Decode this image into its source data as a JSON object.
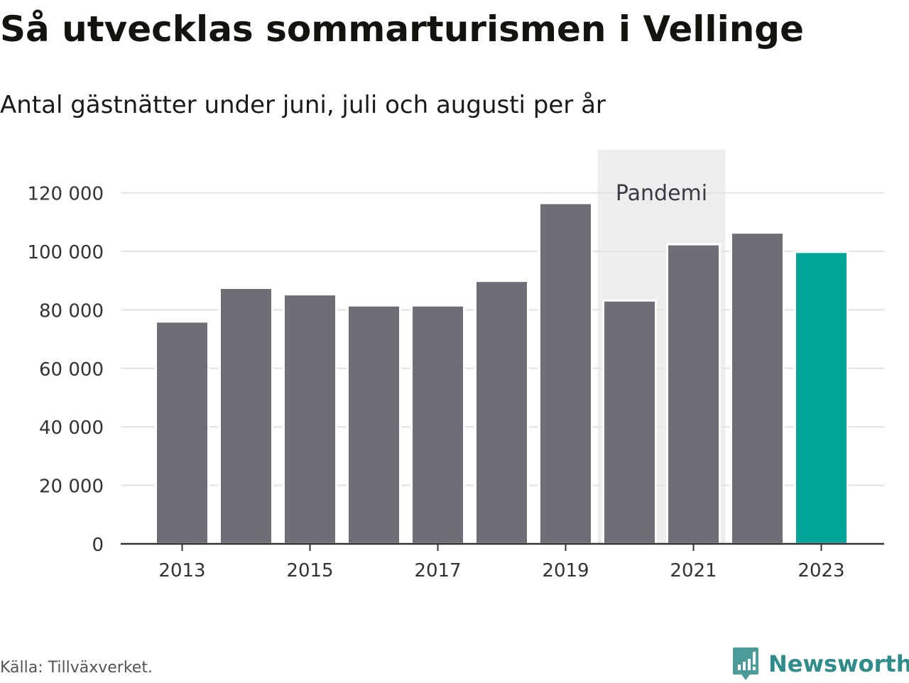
{
  "title": "Så utvecklas sommarturismen i Vellinge",
  "subtitle": "Antal gästnätter under juni, juli och augusti per år",
  "source": "Källa: Tillväxverket.",
  "brand": {
    "name": "Newsworthy",
    "icon": "newsworthy-logo-icon",
    "color": "#2f8c8a"
  },
  "colors": {
    "bar": "#6f6e76",
    "highlight": "#00a499",
    "gridline": "#e3e3e3",
    "band": "#eeeeee",
    "axis": "#333333"
  },
  "chart_data": {
    "type": "bar",
    "categories": [
      "2013",
      "2014",
      "2015",
      "2016",
      "2017",
      "2018",
      "2019",
      "2020",
      "2021",
      "2022",
      "2023"
    ],
    "values": [
      76000,
      87500,
      85300,
      81500,
      81500,
      89900,
      116500,
      83200,
      102400,
      106400,
      99800
    ],
    "highlight_category": "2023",
    "x_tick_labels": [
      "2013",
      "2015",
      "2017",
      "2019",
      "2021",
      "2023"
    ],
    "y_ticks": [
      0,
      20000,
      40000,
      60000,
      80000,
      100000,
      120000
    ],
    "y_tick_labels": [
      "0",
      "20 000",
      "40 000",
      "60 000",
      "80 000",
      "100 000",
      "120 000"
    ],
    "ylim": [
      0,
      130000
    ],
    "grid": true,
    "annotation": {
      "label": "Pandemi",
      "from_category": "2020",
      "to_category": "2021"
    },
    "xlabel": "",
    "ylabel": ""
  }
}
